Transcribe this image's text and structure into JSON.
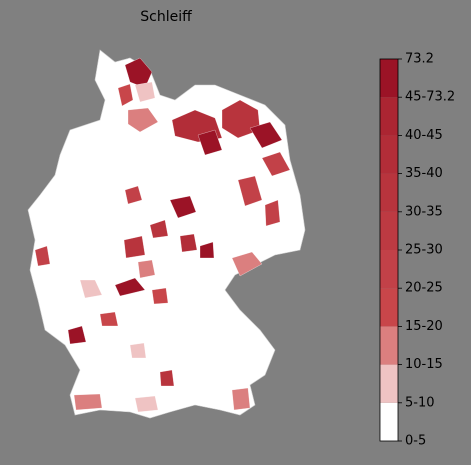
{
  "title": "Schleiff",
  "colorbar": {
    "ticks": [
      "0-5",
      "5-10",
      "10-15",
      "15-20",
      "20-25",
      "25-30",
      "30-35",
      "35-40",
      "40-45",
      "45-73.2",
      73.2
    ],
    "colors": [
      "#ffffff",
      "#efc3c3",
      "#db7f7f",
      "#c8464a",
      "#c24148",
      "#bd3a42",
      "#b8343d",
      "#b22d38",
      "#ab2532",
      "#9b1326"
    ]
  }
}
